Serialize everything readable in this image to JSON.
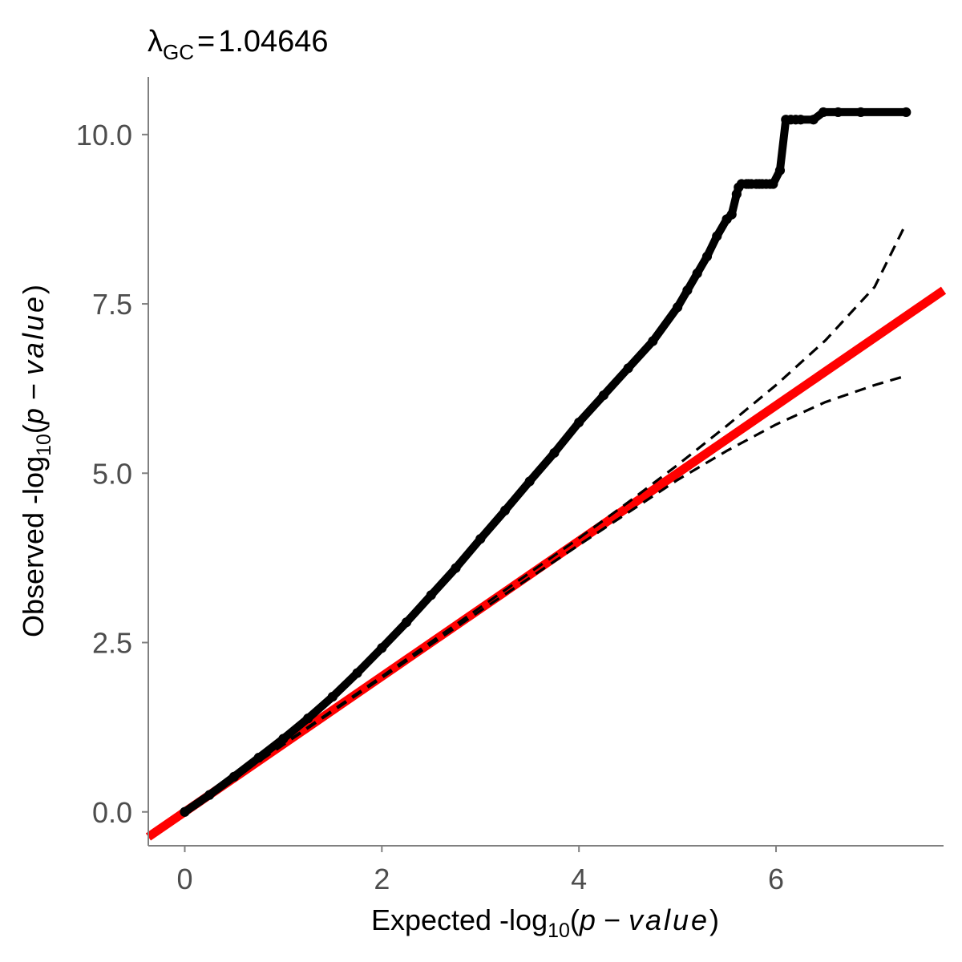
{
  "chart_data": {
    "type": "scatter",
    "title": {
      "symbol": "λ",
      "subscript": "GC",
      "equals": "=",
      "value": "1.04646"
    },
    "xlabel": {
      "prefix": "Expected -log",
      "subscript": "10",
      "open": "(",
      "p": "p",
      "minus": " − ",
      "value_word": "value",
      "close": ")"
    },
    "ylabel": {
      "prefix": "Observed -log",
      "subscript": "10",
      "open": "(",
      "p": "p",
      "minus": " − ",
      "value_word": "value",
      "close": ")"
    },
    "xlim": [
      -0.37,
      7.7
    ],
    "ylim": [
      -0.5,
      10.85
    ],
    "x_ticks": [
      0,
      2,
      4,
      6
    ],
    "x_tick_labels": [
      "0",
      "2",
      "4",
      "6"
    ],
    "y_ticks": [
      0,
      2.5,
      5,
      7.5,
      10
    ],
    "y_tick_labels": [
      "0.0",
      "2.5",
      "5.0",
      "7.5",
      "10.0"
    ],
    "grid": false,
    "colors": {
      "points": "#000000",
      "reference_line": "#ff0000",
      "ci_lines": "#000000",
      "axis": "#808080",
      "tick_labels": "#4d4d4d"
    },
    "series": [
      {
        "kind": "points",
        "shape": "open-circle",
        "x": [
          0,
          0.25,
          0.5,
          0.75,
          1.0,
          1.25,
          1.5,
          1.75,
          2.0,
          2.25,
          2.5,
          2.75,
          3.0,
          3.25,
          3.5,
          3.75,
          4.0,
          4.25,
          4.5,
          4.75,
          5.0,
          5.1,
          5.2,
          5.3,
          5.4,
          5.5,
          5.55,
          5.6,
          5.62,
          5.65,
          5.7,
          5.72,
          5.75,
          5.8,
          5.83,
          5.86,
          5.9,
          5.94,
          5.97,
          6.04,
          6.1,
          6.15,
          6.2,
          6.25,
          6.38,
          6.48,
          6.63,
          6.86,
          7.32
        ],
        "y": [
          0.0,
          0.25,
          0.52,
          0.8,
          1.08,
          1.38,
          1.7,
          2.05,
          2.42,
          2.8,
          3.2,
          3.6,
          4.03,
          4.45,
          4.88,
          5.3,
          5.75,
          6.15,
          6.55,
          6.95,
          7.45,
          7.7,
          7.95,
          8.2,
          8.5,
          8.75,
          8.82,
          9.12,
          9.22,
          9.27,
          9.27,
          9.27,
          9.27,
          9.27,
          9.27,
          9.27,
          9.27,
          9.27,
          9.27,
          9.47,
          10.22,
          10.22,
          10.22,
          10.22,
          10.22,
          10.33,
          10.33,
          10.33,
          10.33
        ]
      },
      {
        "kind": "line",
        "style": "solid",
        "x": [
          -0.37,
          7.7
        ],
        "y": [
          -0.37,
          7.7
        ]
      },
      {
        "kind": "line",
        "style": "dashed",
        "x": [
          0,
          1,
          2,
          3,
          4,
          4.5,
          5,
          5.5,
          6,
          6.5,
          7,
          7.3
        ],
        "y": [
          0,
          1,
          2,
          3.02,
          4.04,
          4.57,
          5.12,
          5.7,
          6.3,
          6.96,
          7.75,
          8.63
        ]
      },
      {
        "kind": "line",
        "style": "dashed",
        "x": [
          0,
          1,
          2,
          3,
          4,
          4.5,
          5,
          5.5,
          6,
          6.5,
          7,
          7.3
        ],
        "y": [
          0,
          0.99,
          1.98,
          2.97,
          3.94,
          4.42,
          4.9,
          5.33,
          5.72,
          6.05,
          6.3,
          6.43
        ]
      }
    ]
  }
}
